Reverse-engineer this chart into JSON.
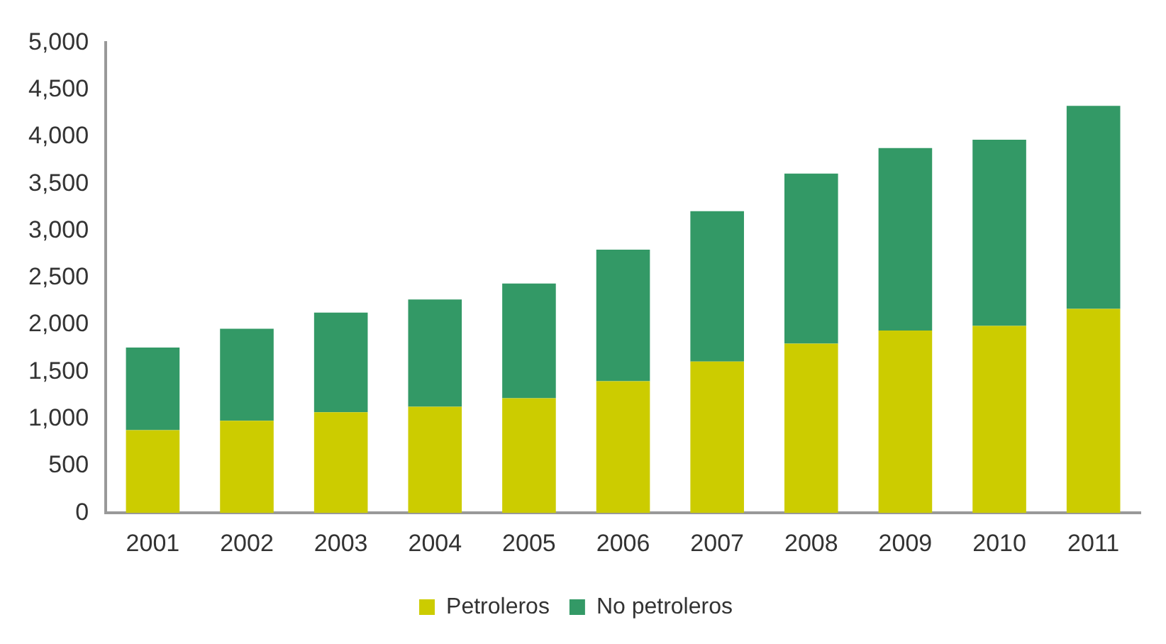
{
  "chart_data": {
    "type": "bar",
    "stacked": true,
    "categories": [
      "2001",
      "2002",
      "2003",
      "2004",
      "2005",
      "2006",
      "2007",
      "2008",
      "2009",
      "2010",
      "2011"
    ],
    "series": [
      {
        "name": "Petroleros",
        "color": "#cccc00",
        "values": [
          880,
          980,
          1070,
          1130,
          1220,
          1400,
          1610,
          1800,
          1940,
          1990,
          2170
        ]
      },
      {
        "name": "No petroleros",
        "color": "#339966",
        "values": [
          880,
          980,
          1060,
          1140,
          1220,
          1400,
          1600,
          1810,
          1940,
          1980,
          2160
        ]
      }
    ],
    "ylim": [
      0,
      5000
    ],
    "yticks": [
      0,
      500,
      {
        "value": 1000,
        "label": "1,000"
      },
      {
        "value": 1500,
        "label": "1,500"
      },
      {
        "value": 2000,
        "label": "2,000"
      },
      {
        "value": 2500,
        "label": "2,500"
      },
      {
        "value": 3000,
        "label": "3,000"
      },
      {
        "value": 3500,
        "label": "3,500"
      },
      {
        "value": 4000,
        "label": "4,000"
      },
      {
        "value": 4500,
        "label": "4,500"
      },
      {
        "value": 5000,
        "label": "5,000"
      }
    ],
    "grid": false,
    "legend": "bottom"
  }
}
